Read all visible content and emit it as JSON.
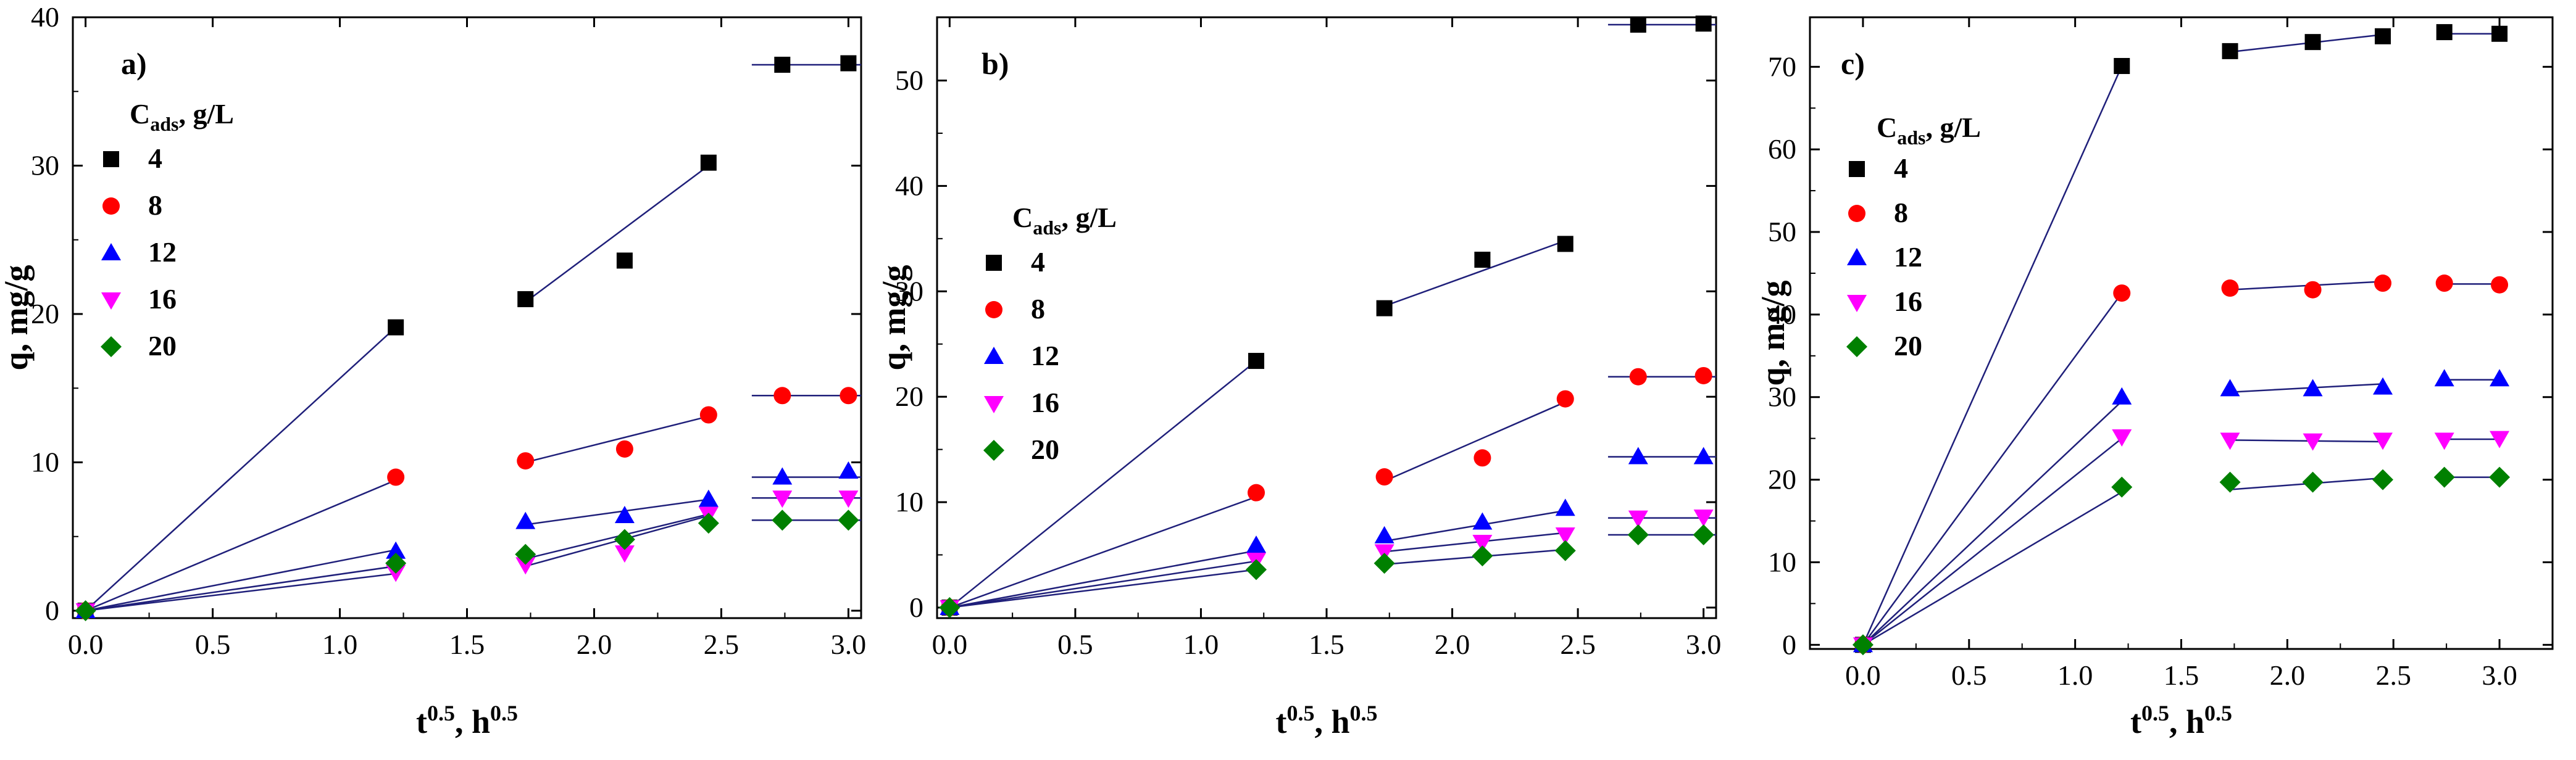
{
  "colors": {
    "series": [
      "#000000",
      "#ff0000",
      "#0000ff",
      "#ff00ff",
      "#008000"
    ],
    "fit_line": "#1f1f7a",
    "axis": "#000000"
  },
  "chart_data": [
    {
      "type": "scatter",
      "panel_label": "a)",
      "xlabel": "t0.5, h0.5",
      "ylabel": "q, mg/g",
      "xlim": [
        -0.05,
        3.05
      ],
      "ylim": [
        -0.5,
        40
      ],
      "xticks": [
        0.0,
        0.5,
        1.0,
        1.5,
        2.0,
        2.5,
        3.0
      ],
      "xtick_labels": [
        "0.0",
        "0.5",
        "1.0",
        "1.5",
        "2.0",
        "2.5",
        "3.0"
      ],
      "yticks": [
        0,
        10,
        20,
        30,
        40
      ],
      "ytick_labels": [
        "0",
        "10",
        "20",
        "30",
        "40"
      ],
      "legend": {
        "title": "Cads, g/L",
        "placement": "upper-left"
      },
      "x": [
        0,
        1.22,
        1.73,
        2.12,
        2.45,
        2.74,
        3.0
      ],
      "series": [
        {
          "name": "4",
          "marker": "square",
          "values": [
            0,
            19.1,
            21.0,
            23.6,
            30.2,
            36.8,
            36.9
          ],
          "fits": [
            {
              "x": [
                0,
                1.22
              ],
              "y": [
                0,
                19.1
              ]
            },
            {
              "x": [
                1.73,
                2.45
              ],
              "y": [
                20.8,
                30.0
              ]
            },
            {
              "x": [
                2.62,
                3.05
              ],
              "y": [
                36.8,
                36.8
              ]
            }
          ]
        },
        {
          "name": "8",
          "marker": "circle",
          "values": [
            0,
            9.0,
            10.1,
            10.9,
            13.2,
            14.5,
            14.5
          ],
          "fits": [
            {
              "x": [
                0,
                1.22
              ],
              "y": [
                0,
                8.8
              ]
            },
            {
              "x": [
                1.73,
                2.45
              ],
              "y": [
                10.0,
                13.1
              ]
            },
            {
              "x": [
                2.62,
                3.05
              ],
              "y": [
                14.5,
                14.5
              ]
            }
          ]
        },
        {
          "name": "12",
          "marker": "triangle",
          "values": [
            0,
            4.0,
            6.0,
            6.4,
            7.5,
            9.0,
            9.4
          ],
          "fits": [
            {
              "x": [
                0,
                1.22
              ],
              "y": [
                0,
                4.1
              ]
            },
            {
              "x": [
                1.73,
                2.45
              ],
              "y": [
                5.8,
                7.5
              ]
            },
            {
              "x": [
                2.62,
                3.05
              ],
              "y": [
                9.0,
                9.0
              ]
            }
          ]
        },
        {
          "name": "16",
          "marker": "triangle-down",
          "values": [
            0,
            2.6,
            3.1,
            3.9,
            6.5,
            7.6,
            7.6
          ],
          "fits": [
            {
              "x": [
                0,
                1.22
              ],
              "y": [
                0,
                3.0
              ]
            },
            {
              "x": [
                1.73,
                2.45
              ],
              "y": [
                3.0,
                6.4
              ]
            },
            {
              "x": [
                2.62,
                3.05
              ],
              "y": [
                7.6,
                7.6
              ]
            }
          ]
        },
        {
          "name": "20",
          "marker": "diamond",
          "values": [
            0,
            3.2,
            3.8,
            4.8,
            5.9,
            6.1,
            6.1
          ],
          "fits": [
            {
              "x": [
                0,
                1.22
              ],
              "y": [
                0,
                2.5
              ]
            },
            {
              "x": [
                1.73,
                2.45
              ],
              "y": [
                3.5,
                6.5
              ]
            },
            {
              "x": [
                2.62,
                3.05
              ],
              "y": [
                6.1,
                6.1
              ]
            }
          ]
        }
      ]
    },
    {
      "type": "scatter",
      "panel_label": "b)",
      "xlabel": "t0.5, h0.5",
      "ylabel": "q, mg/g",
      "xlim": [
        -0.05,
        3.05
      ],
      "ylim": [
        -1,
        56
      ],
      "xticks": [
        0.0,
        0.5,
        1.0,
        1.5,
        2.0,
        2.5,
        3.0
      ],
      "xtick_labels": [
        "0.0",
        "0.5",
        "1.0",
        "1.5",
        "2.0",
        "2.5",
        "3.0"
      ],
      "yticks": [
        0,
        10,
        20,
        30,
        40,
        50
      ],
      "ytick_labels": [
        "0",
        "10",
        "20",
        "30",
        "40",
        "50"
      ],
      "legend": {
        "title": "Cads, g/L",
        "placement": "center-left"
      },
      "x": [
        0,
        1.22,
        1.73,
        2.12,
        2.45,
        2.74,
        3.0
      ],
      "series": [
        {
          "name": "4",
          "marker": "square",
          "values": [
            0,
            23.4,
            28.4,
            33.0,
            34.5,
            55.3,
            55.4
          ],
          "fits": [
            {
              "x": [
                0,
                1.22
              ],
              "y": [
                0,
                23.4
              ]
            },
            {
              "x": [
                1.73,
                2.45
              ],
              "y": [
                28.6,
                34.8
              ]
            },
            {
              "x": [
                2.62,
                3.05
              ],
              "y": [
                55.3,
                55.3
              ]
            }
          ]
        },
        {
          "name": "8",
          "marker": "circle",
          "values": [
            0,
            10.9,
            12.4,
            14.2,
            19.8,
            21.9,
            22.0
          ],
          "fits": [
            {
              "x": [
                0,
                1.22
              ],
              "y": [
                0,
                10.5
              ]
            },
            {
              "x": [
                1.73,
                2.45
              ],
              "y": [
                12.0,
                19.5
              ]
            },
            {
              "x": [
                2.62,
                3.05
              ],
              "y": [
                21.9,
                21.9
              ]
            }
          ]
        },
        {
          "name": "12",
          "marker": "triangle",
          "values": [
            0,
            5.9,
            6.8,
            8.1,
            9.4,
            14.3,
            14.3
          ],
          "fits": [
            {
              "x": [
                0,
                1.22
              ],
              "y": [
                0,
                5.4
              ]
            },
            {
              "x": [
                1.73,
                2.45
              ],
              "y": [
                6.3,
                9.2
              ]
            },
            {
              "x": [
                2.62,
                3.05
              ],
              "y": [
                14.3,
                14.3
              ]
            }
          ]
        },
        {
          "name": "16",
          "marker": "triangle-down",
          "values": [
            0,
            4.5,
            5.3,
            6.2,
            6.9,
            8.5,
            8.6
          ],
          "fits": [
            {
              "x": [
                0,
                1.22
              ],
              "y": [
                0,
                4.4
              ]
            },
            {
              "x": [
                1.73,
                2.45
              ],
              "y": [
                5.3,
                7.1
              ]
            },
            {
              "x": [
                2.62,
                3.05
              ],
              "y": [
                8.5,
                8.5
              ]
            }
          ]
        },
        {
          "name": "20",
          "marker": "diamond",
          "values": [
            0,
            3.6,
            4.2,
            4.9,
            5.4,
            6.9,
            6.9
          ],
          "fits": [
            {
              "x": [
                0,
                1.22
              ],
              "y": [
                0,
                3.6
              ]
            },
            {
              "x": [
                1.73,
                2.45
              ],
              "y": [
                4.1,
                5.5
              ]
            },
            {
              "x": [
                2.62,
                3.05
              ],
              "y": [
                6.9,
                6.9
              ]
            }
          ]
        }
      ]
    },
    {
      "type": "scatter",
      "panel_label": "c)",
      "xlabel": "t0.5, h0.5",
      "ylabel": "q, mg/g",
      "xlim": [
        -0.25,
        3.25
      ],
      "ylim": [
        -0.5,
        76
      ],
      "xticks": [
        0.0,
        0.5,
        1.0,
        1.5,
        2.0,
        2.5,
        3.0
      ],
      "xtick_labels": [
        "0.0",
        "0.5",
        "1.0",
        "1.5",
        "2.0",
        "2.5",
        "3.0"
      ],
      "yticks": [
        0,
        10,
        20,
        30,
        40,
        50,
        60,
        70
      ],
      "ytick_labels": [
        "0",
        "10",
        "20",
        "30",
        "40",
        "50",
        "60",
        "70"
      ],
      "legend": {
        "title": "Cads, g/L",
        "placement": "upper-left"
      },
      "x": [
        0,
        1.22,
        1.73,
        2.12,
        2.45,
        2.74,
        3.0
      ],
      "series": [
        {
          "name": "4",
          "marker": "square",
          "values": [
            0,
            70.1,
            71.9,
            73.0,
            73.7,
            74.2,
            74.0
          ],
          "fits": [
            {
              "x": [
                0,
                1.22
              ],
              "y": [
                0,
                70.1
              ]
            },
            {
              "x": [
                1.73,
                2.45
              ],
              "y": [
                71.8,
                73.9
              ]
            },
            {
              "x": [
                2.74,
                3.0
              ],
              "y": [
                74.0,
                74.0
              ]
            }
          ]
        },
        {
          "name": "8",
          "marker": "circle",
          "values": [
            0,
            42.6,
            43.2,
            43.0,
            43.8,
            43.8,
            43.6
          ],
          "fits": [
            {
              "x": [
                0,
                1.22
              ],
              "y": [
                0,
                42.6
              ]
            },
            {
              "x": [
                1.73,
                2.45
              ],
              "y": [
                43.0,
                44.0
              ]
            },
            {
              "x": [
                2.74,
                3.0
              ],
              "y": [
                43.7,
                43.7
              ]
            }
          ]
        },
        {
          "name": "12",
          "marker": "triangle",
          "values": [
            0,
            30.0,
            31.0,
            31.0,
            31.2,
            32.2,
            32.2
          ],
          "fits": [
            {
              "x": [
                0,
                1.22
              ],
              "y": [
                0,
                29.5
              ]
            },
            {
              "x": [
                1.73,
                2.45
              ],
              "y": [
                30.6,
                31.6
              ]
            },
            {
              "x": [
                2.74,
                3.0
              ],
              "y": [
                32.1,
                32.1
              ]
            }
          ]
        },
        {
          "name": "16",
          "marker": "triangle-down",
          "values": [
            0,
            25.2,
            24.8,
            24.7,
            24.8,
            24.8,
            25.0
          ],
          "fits": [
            {
              "x": [
                0,
                1.22
              ],
              "y": [
                0,
                25.0
              ]
            },
            {
              "x": [
                1.73,
                2.45
              ],
              "y": [
                24.8,
                24.6
              ]
            },
            {
              "x": [
                2.74,
                3.0
              ],
              "y": [
                24.9,
                24.9
              ]
            }
          ]
        },
        {
          "name": "20",
          "marker": "diamond",
          "values": [
            0,
            19.1,
            19.7,
            19.7,
            20.0,
            20.3,
            20.3
          ],
          "fits": [
            {
              "x": [
                0,
                1.22
              ],
              "y": [
                0,
                18.5
              ]
            },
            {
              "x": [
                1.73,
                2.45
              ],
              "y": [
                18.8,
                20.2
              ]
            },
            {
              "x": [
                2.74,
                3.0
              ],
              "y": [
                20.3,
                20.3
              ]
            }
          ]
        }
      ]
    }
  ]
}
